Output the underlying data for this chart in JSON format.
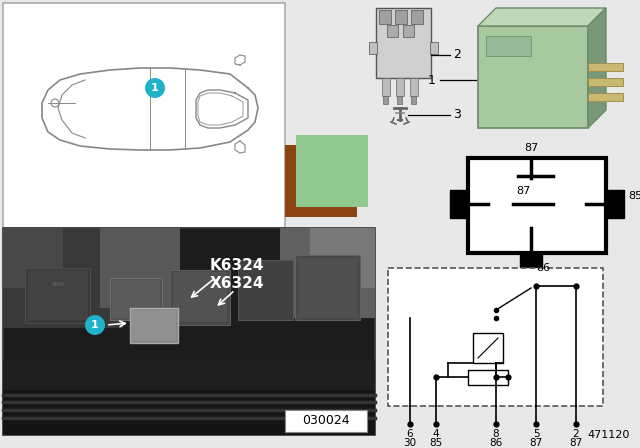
{
  "fig_w": 640,
  "fig_h": 448,
  "bg_color": "#e8e8e8",
  "white": "#ffffff",
  "black": "#000000",
  "callout_cyan": "#20b2c8",
  "relay_green": "#a8c8a0",
  "relay_green_dark": "#88aa88",
  "relay_green_side": "#789878",
  "brown_swatch": "#8B4513",
  "green_swatch": "#90c890",
  "photo_bg": "#1a1a1a",
  "photo_dark": "#282828",
  "photo_mid": "#404040",
  "photo_light": "#585858",
  "photo_bright": "#686868",
  "car_box_border": "#aaaaaa",
  "fig_number": "471120",
  "photo_label": "030024",
  "k6324": "K6324",
  "x6324": "X6324",
  "label1": "1",
  "label2": "2",
  "label3": "3",
  "pin_top": [
    "6",
    "4",
    "8",
    "5",
    "2"
  ],
  "pin_bot": [
    "30",
    "85",
    "86",
    "87",
    "87"
  ]
}
